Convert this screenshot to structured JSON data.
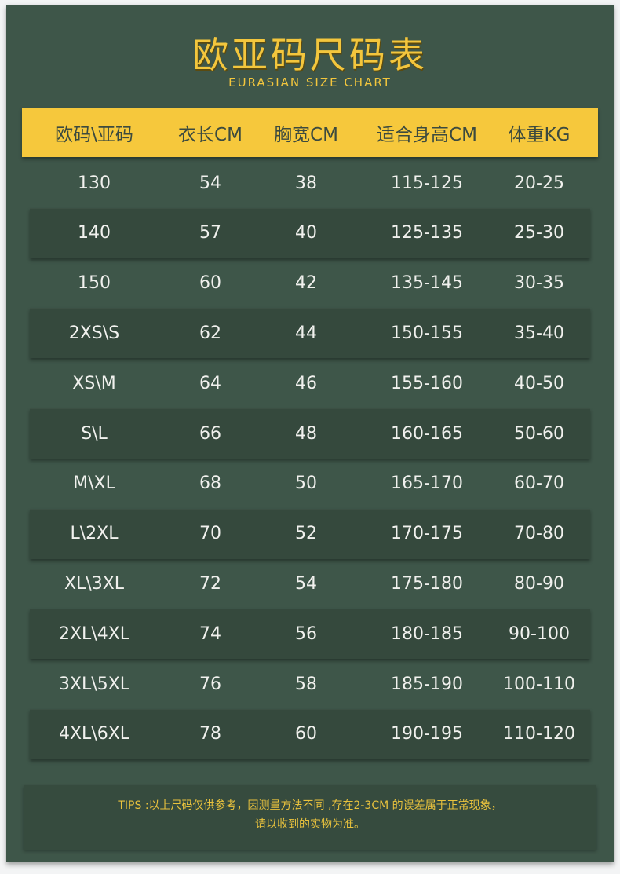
{
  "title": "欧亚码尺码表",
  "subtitle": "EURASIAN SIZE CHART",
  "columns": [
    "欧码\\亚码",
    "衣长CM",
    "胸宽CM",
    "适合身高CM",
    "体重KG"
  ],
  "rows": [
    [
      "130",
      "54",
      "38",
      "115-125",
      "20-25"
    ],
    [
      "140",
      "57",
      "40",
      "125-135",
      "25-30"
    ],
    [
      "150",
      "60",
      "42",
      "135-145",
      "30-35"
    ],
    [
      "2XS\\S",
      "62",
      "44",
      "150-155",
      "35-40"
    ],
    [
      "XS\\M",
      "64",
      "46",
      "155-160",
      "40-50"
    ],
    [
      "S\\L",
      "66",
      "48",
      "160-165",
      "50-60"
    ],
    [
      "M\\XL",
      "68",
      "50",
      "165-170",
      "60-70"
    ],
    [
      "L\\2XL",
      "70",
      "52",
      "170-175",
      "70-80"
    ],
    [
      "XL\\3XL",
      "72",
      "54",
      "175-180",
      "80-90"
    ],
    [
      "2XL\\4XL",
      "74",
      "56",
      "180-185",
      "90-100"
    ],
    [
      "3XL\\5XL",
      "76",
      "58",
      "185-190",
      "100-110"
    ],
    [
      "4XL\\6XL",
      "78",
      "60",
      "190-195",
      "110-120"
    ]
  ],
  "tips": {
    "line1": "TIPS :以上尺码仅供参考，因测量方法不同 ,存在2-3CM 的误差属于正常现象，",
    "line2": "请以收到的实物为准。"
  },
  "colors": {
    "background": "#3e5649",
    "accent": "#f6c83c",
    "text": "#f1f1ee"
  }
}
